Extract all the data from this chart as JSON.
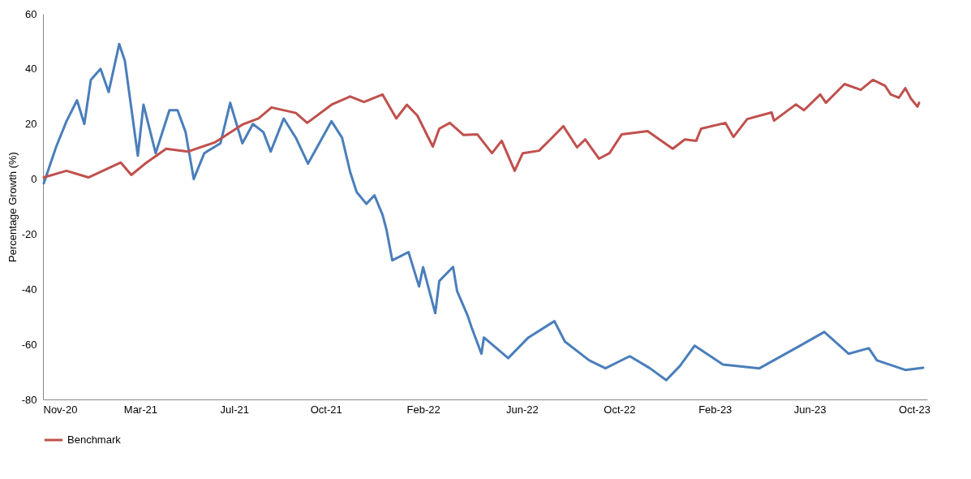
{
  "chart_data": {
    "type": "line",
    "ylabel": "Percentage Growth (%)",
    "legend": "bottom",
    "grid": false,
    "xlim": [
      "2020-11-16",
      "2023-11-12"
    ],
    "xticks": [
      {
        "value": "2020-11-16",
        "label": "Nov-20"
      },
      {
        "value": "2021-03-16",
        "label": "Mar-21"
      },
      {
        "value": "2021-07-10",
        "label": "Jul-21"
      },
      {
        "value": "2021-10-31",
        "label": "Oct-21"
      },
      {
        "value": "2022-02-28",
        "label": "Feb-22"
      },
      {
        "value": "2022-06-30",
        "label": "Jun-22"
      },
      {
        "value": "2022-10-28",
        "label": "Oct-22"
      },
      {
        "value": "2023-02-23",
        "label": "Feb-23"
      },
      {
        "value": "2023-06-20",
        "label": "Jun-23"
      },
      {
        "value": "2023-10-27",
        "label": "Oct-23"
      }
    ],
    "ylim": [
      -80,
      60
    ],
    "yticks": [
      -80,
      -60,
      -40,
      -20,
      0,
      20,
      40,
      60
    ],
    "series": [
      {
        "color": "#4a7ebb",
        "x": [
          "2020-11-17",
          "2020-12-02",
          "2020-12-15",
          "2020-12-28",
          "2021-01-06",
          "2021-01-14",
          "2021-01-26",
          "2021-02-05",
          "2021-02-18",
          "2021-02-25",
          "2021-03-13",
          "2021-03-20",
          "2021-04-04",
          "2021-04-21",
          "2021-05-01",
          "2021-05-11",
          "2021-05-21",
          "2021-06-03",
          "2021-06-23",
          "2021-07-05",
          "2021-07-20",
          "2021-08-02",
          "2021-08-15",
          "2021-08-24",
          "2021-09-09",
          "2021-09-24",
          "2021-10-09",
          "2021-11-07",
          "2021-11-20",
          "2021-11-30",
          "2021-12-08",
          "2021-12-20",
          "2021-12-30",
          "2022-01-09",
          "2022-01-14",
          "2022-01-21",
          "2022-01-31",
          "2022-02-10",
          "2022-02-23",
          "2022-02-28",
          "2022-03-15",
          "2022-03-20",
          "2022-04-06",
          "2022-04-11",
          "2022-04-24",
          "2022-04-29",
          "2022-05-11",
          "2022-05-14",
          "2022-06-13",
          "2022-07-08",
          "2022-08-09",
          "2022-08-22",
          "2022-09-21",
          "2022-10-11",
          "2022-11-10",
          "2022-12-05",
          "2022-12-25",
          "2023-01-11",
          "2023-01-29",
          "2023-03-05",
          "2023-04-19",
          "2023-06-08",
          "2023-07-08",
          "2023-08-07",
          "2023-09-01",
          "2023-09-11",
          "2023-10-16",
          "2023-11-07"
        ],
        "values": [
          -1.5,
          11.5,
          21,
          28.6,
          20,
          36,
          40,
          31.6,
          49,
          43,
          8.5,
          27,
          9.4,
          25,
          25,
          17,
          0,
          9.4,
          13,
          27.7,
          13,
          20,
          17,
          10,
          22,
          15,
          5.6,
          21,
          15,
          2.6,
          -4.7,
          -9,
          -5.9,
          -13,
          -18.6,
          -29.5,
          -28,
          -26.5,
          -39,
          -32,
          -48.7,
          -37,
          -31.9,
          -40.7,
          -49.6,
          -54,
          -63.4,
          -57.5,
          -65,
          -57.5,
          -51.6,
          -59,
          -65.8,
          -68.7,
          -64.3,
          -68.7,
          -73,
          -67.8,
          -60.5,
          -67.3,
          -68.7,
          -60.5,
          -55.5,
          -63.4,
          -61.4,
          -65.8,
          -69.3,
          -68.5
        ]
      },
      {
        "name": "Benchmark",
        "color": "#c0504d",
        "x": [
          "2020-11-17",
          "2020-12-15",
          "2021-01-11",
          "2021-02-20",
          "2021-03-05",
          "2021-03-22",
          "2021-04-17",
          "2021-05-14",
          "2021-06-16",
          "2021-07-20",
          "2021-08-09",
          "2021-08-25",
          "2021-09-24",
          "2021-10-08",
          "2021-11-07",
          "2021-11-30",
          "2021-12-17",
          "2022-01-09",
          "2022-01-26",
          "2022-02-08",
          "2022-02-21",
          "2022-03-12",
          "2022-03-20",
          "2022-04-02",
          "2022-04-19",
          "2022-05-06",
          "2022-05-24",
          "2022-06-05",
          "2022-06-21",
          "2022-07-01",
          "2022-07-21",
          "2022-08-04",
          "2022-08-20",
          "2022-09-06",
          "2022-09-16",
          "2022-10-03",
          "2022-10-16",
          "2022-10-31",
          "2022-12-02",
          "2023-01-02",
          "2023-01-17",
          "2023-01-31",
          "2023-02-06",
          "2023-03-08",
          "2023-03-18",
          "2023-04-04",
          "2023-05-04",
          "2023-05-07",
          "2023-06-03",
          "2023-06-13",
          "2023-07-03",
          "2023-07-10",
          "2023-08-02",
          "2023-08-22",
          "2023-09-06",
          "2023-09-21",
          "2023-09-28",
          "2023-10-08",
          "2023-10-16",
          "2023-10-23",
          "2023-10-31",
          "2023-11-02"
        ],
        "values": [
          0.6,
          3,
          0.6,
          6,
          1.5,
          5.6,
          11,
          10,
          13.3,
          19.8,
          22,
          26,
          24,
          20.4,
          27,
          30,
          28,
          30.7,
          22,
          27,
          23,
          11.8,
          18.3,
          20.4,
          16,
          16.2,
          9.4,
          13.9,
          3,
          9.4,
          10.3,
          14.4,
          19.2,
          11.5,
          14.4,
          7.4,
          9.4,
          16.2,
          17.4,
          11,
          14.4,
          13.9,
          18.3,
          20.4,
          15.3,
          21.8,
          24.2,
          21.2,
          27.1,
          25,
          30.7,
          27.7,
          34.5,
          32.4,
          36,
          33.9,
          30.7,
          29.5,
          33,
          29.2,
          26.3,
          27.7
        ]
      }
    ]
  }
}
